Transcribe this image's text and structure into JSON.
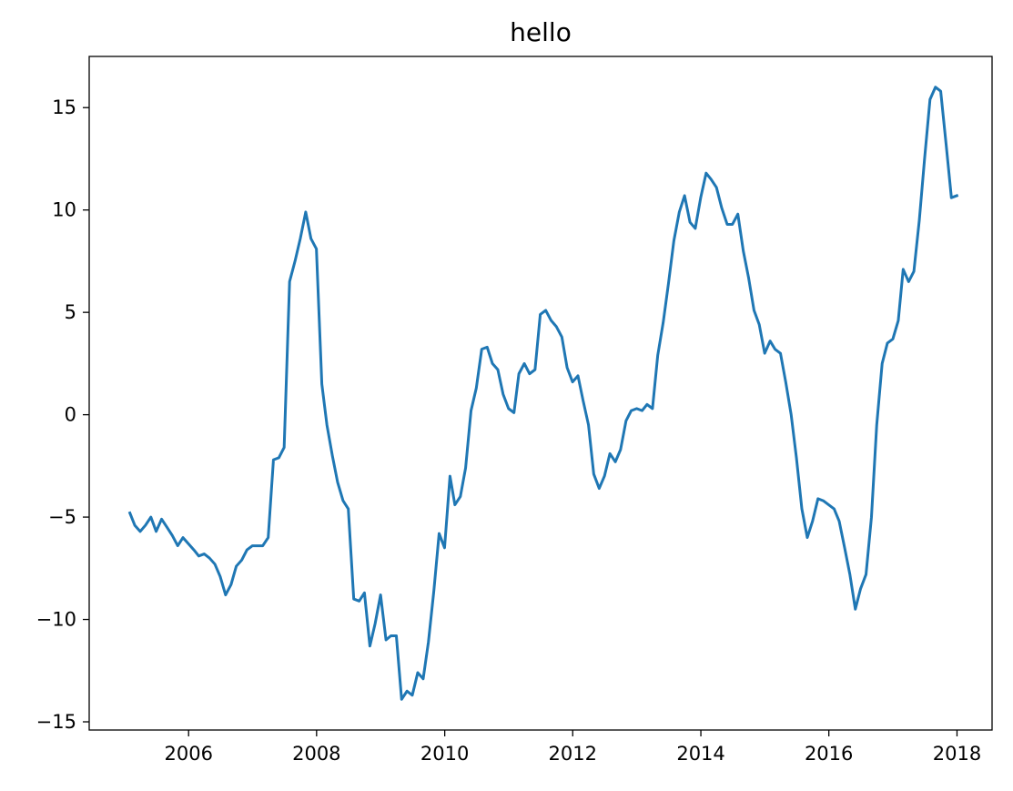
{
  "chart_data": {
    "type": "line",
    "title": "hello",
    "xlabel": "",
    "ylabel": "",
    "xlim": [
      "2004-06-13",
      "2018-07-20"
    ],
    "ylim": [
      -15.4,
      17.5
    ],
    "grid": false,
    "x_ticks": [
      "2006",
      "2008",
      "2010",
      "2012",
      "2014",
      "2016",
      "2018"
    ],
    "y_ticks": [
      "−15",
      "−10",
      "−5",
      "0",
      "5",
      "10",
      "15"
    ],
    "series": [
      {
        "color": "#1f77b4",
        "points": [
          [
            "2005-01-31",
            -4.8
          ],
          [
            "2005-02-28",
            -5.4
          ],
          [
            "2005-03-31",
            -5.7
          ],
          [
            "2005-04-30",
            -5.4
          ],
          [
            "2005-05-31",
            -5.0
          ],
          [
            "2005-06-30",
            -5.7
          ],
          [
            "2005-07-31",
            -5.1
          ],
          [
            "2005-08-31",
            -5.5
          ],
          [
            "2005-09-30",
            -5.9
          ],
          [
            "2005-10-31",
            -6.4
          ],
          [
            "2005-11-30",
            -6.0
          ],
          [
            "2005-12-31",
            -6.3
          ],
          [
            "2006-01-31",
            -6.6
          ],
          [
            "2006-02-28",
            -6.9
          ],
          [
            "2006-03-31",
            -6.8
          ],
          [
            "2006-04-30",
            -7.0
          ],
          [
            "2006-05-31",
            -7.3
          ],
          [
            "2006-06-30",
            -7.9
          ],
          [
            "2006-07-31",
            -8.8
          ],
          [
            "2006-08-31",
            -8.3
          ],
          [
            "2006-09-30",
            -7.4
          ],
          [
            "2006-10-31",
            -7.1
          ],
          [
            "2006-11-30",
            -6.6
          ],
          [
            "2006-12-31",
            -6.4
          ],
          [
            "2007-01-31",
            -6.4
          ],
          [
            "2007-02-28",
            -6.4
          ],
          [
            "2007-03-31",
            -6.0
          ],
          [
            "2007-04-30",
            -2.2
          ],
          [
            "2007-05-31",
            -2.1
          ],
          [
            "2007-06-30",
            -1.6
          ],
          [
            "2007-07-31",
            6.5
          ],
          [
            "2007-08-31",
            7.5
          ],
          [
            "2007-09-30",
            8.6
          ],
          [
            "2007-10-31",
            9.9
          ],
          [
            "2007-11-30",
            8.6
          ],
          [
            "2007-12-31",
            8.1
          ],
          [
            "2008-01-31",
            1.5
          ],
          [
            "2008-02-29",
            -0.5
          ],
          [
            "2008-03-31",
            -2.0
          ],
          [
            "2008-04-30",
            -3.3
          ],
          [
            "2008-05-31",
            -4.2
          ],
          [
            "2008-06-30",
            -4.6
          ],
          [
            "2008-07-31",
            -9.0
          ],
          [
            "2008-08-31",
            -9.1
          ],
          [
            "2008-09-30",
            -8.7
          ],
          [
            "2008-10-31",
            -11.3
          ],
          [
            "2008-11-30",
            -10.2
          ],
          [
            "2008-12-31",
            -8.8
          ],
          [
            "2009-01-31",
            -11.0
          ],
          [
            "2009-02-28",
            -10.8
          ],
          [
            "2009-03-31",
            -10.8
          ],
          [
            "2009-04-30",
            -13.9
          ],
          [
            "2009-05-31",
            -13.5
          ],
          [
            "2009-06-30",
            -13.7
          ],
          [
            "2009-07-31",
            -12.6
          ],
          [
            "2009-08-31",
            -12.9
          ],
          [
            "2009-09-30",
            -11.1
          ],
          [
            "2009-10-31",
            -8.6
          ],
          [
            "2009-11-30",
            -5.8
          ],
          [
            "2009-12-31",
            -6.5
          ],
          [
            "2010-01-31",
            -3.0
          ],
          [
            "2010-02-28",
            -4.4
          ],
          [
            "2010-03-31",
            -4.0
          ],
          [
            "2010-04-30",
            -2.6
          ],
          [
            "2010-05-31",
            0.2
          ],
          [
            "2010-06-30",
            1.3
          ],
          [
            "2010-07-31",
            3.2
          ],
          [
            "2010-08-31",
            3.3
          ],
          [
            "2010-09-30",
            2.5
          ],
          [
            "2010-10-31",
            2.2
          ],
          [
            "2010-11-30",
            1.0
          ],
          [
            "2010-12-31",
            0.3
          ],
          [
            "2011-01-31",
            0.1
          ],
          [
            "2011-02-28",
            2.0
          ],
          [
            "2011-03-31",
            2.5
          ],
          [
            "2011-04-30",
            2.0
          ],
          [
            "2011-05-31",
            2.2
          ],
          [
            "2011-06-30",
            4.9
          ],
          [
            "2011-07-31",
            5.1
          ],
          [
            "2011-08-31",
            4.6
          ],
          [
            "2011-09-30",
            4.3
          ],
          [
            "2011-10-31",
            3.8
          ],
          [
            "2011-11-30",
            2.3
          ],
          [
            "2011-12-31",
            1.6
          ],
          [
            "2012-01-31",
            1.9
          ],
          [
            "2012-02-29",
            0.7
          ],
          [
            "2012-03-31",
            -0.5
          ],
          [
            "2012-04-30",
            -2.9
          ],
          [
            "2012-05-31",
            -3.6
          ],
          [
            "2012-06-30",
            -3.0
          ],
          [
            "2012-07-31",
            -1.9
          ],
          [
            "2012-08-31",
            -2.3
          ],
          [
            "2012-09-30",
            -1.7
          ],
          [
            "2012-10-31",
            -0.3
          ],
          [
            "2012-11-30",
            0.2
          ],
          [
            "2012-12-31",
            0.3
          ],
          [
            "2013-01-31",
            0.2
          ],
          [
            "2013-02-28",
            0.5
          ],
          [
            "2013-03-31",
            0.3
          ],
          [
            "2013-04-30",
            2.9
          ],
          [
            "2013-05-31",
            4.5
          ],
          [
            "2013-06-30",
            6.4
          ],
          [
            "2013-07-31",
            8.5
          ],
          [
            "2013-08-31",
            9.9
          ],
          [
            "2013-09-30",
            10.7
          ],
          [
            "2013-10-31",
            9.4
          ],
          [
            "2013-11-30",
            9.1
          ],
          [
            "2013-12-31",
            10.6
          ],
          [
            "2014-01-31",
            11.8
          ],
          [
            "2014-02-28",
            11.5
          ],
          [
            "2014-03-31",
            11.1
          ],
          [
            "2014-04-30",
            10.1
          ],
          [
            "2014-05-31",
            9.3
          ],
          [
            "2014-06-30",
            9.3
          ],
          [
            "2014-07-31",
            9.8
          ],
          [
            "2014-08-31",
            8.0
          ],
          [
            "2014-09-30",
            6.7
          ],
          [
            "2014-10-31",
            5.1
          ],
          [
            "2014-11-30",
            4.4
          ],
          [
            "2014-12-31",
            3.0
          ],
          [
            "2015-01-31",
            3.6
          ],
          [
            "2015-02-28",
            3.2
          ],
          [
            "2015-03-31",
            3.0
          ],
          [
            "2015-04-30",
            1.6
          ],
          [
            "2015-05-31",
            0.0
          ],
          [
            "2015-06-30",
            -2.1
          ],
          [
            "2015-07-31",
            -4.6
          ],
          [
            "2015-08-31",
            -6.0
          ],
          [
            "2015-09-30",
            -5.2
          ],
          [
            "2015-10-31",
            -4.1
          ],
          [
            "2015-11-30",
            -4.2
          ],
          [
            "2015-12-31",
            -4.4
          ],
          [
            "2016-01-31",
            -4.6
          ],
          [
            "2016-02-29",
            -5.2
          ],
          [
            "2016-03-31",
            -6.5
          ],
          [
            "2016-04-30",
            -7.8
          ],
          [
            "2016-05-31",
            -9.5
          ],
          [
            "2016-06-30",
            -8.5
          ],
          [
            "2016-07-31",
            -7.8
          ],
          [
            "2016-08-31",
            -5.0
          ],
          [
            "2016-09-30",
            -0.5
          ],
          [
            "2016-10-31",
            2.5
          ],
          [
            "2016-11-30",
            3.5
          ],
          [
            "2016-12-31",
            3.7
          ],
          [
            "2017-01-31",
            4.6
          ],
          [
            "2017-02-28",
            7.1
          ],
          [
            "2017-03-31",
            6.5
          ],
          [
            "2017-04-30",
            7.0
          ],
          [
            "2017-05-31",
            9.5
          ],
          [
            "2017-06-30",
            12.5
          ],
          [
            "2017-07-31",
            15.4
          ],
          [
            "2017-08-31",
            16.0
          ],
          [
            "2017-09-30",
            15.8
          ],
          [
            "2017-10-31",
            13.2
          ],
          [
            "2017-11-30",
            10.6
          ],
          [
            "2017-12-31",
            10.7
          ]
        ]
      }
    ]
  }
}
